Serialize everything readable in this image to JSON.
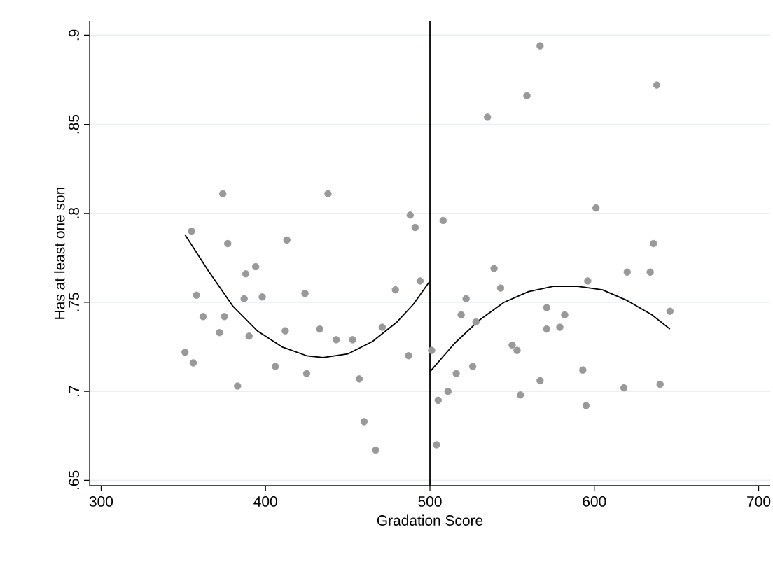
{
  "chart_data": {
    "type": "scatter",
    "xlabel": "Gradation Score",
    "ylabel": "Has at least one son",
    "xlim": [
      293,
      707
    ],
    "ylim": [
      0.647,
      0.908
    ],
    "xticks": [
      300,
      400,
      500,
      600,
      700
    ],
    "yticks": [
      {
        "value": 0.65,
        "label": ".65"
      },
      {
        "value": 0.7,
        "label": ".7"
      },
      {
        "value": 0.75,
        "label": ".75"
      },
      {
        "value": 0.8,
        "label": ".8"
      },
      {
        "value": 0.85,
        "label": ".85"
      },
      {
        "value": 0.9,
        "label": ".9"
      }
    ],
    "grid": "y",
    "marker": "circle",
    "ref_lines": [
      {
        "axis": "x",
        "value": 500,
        "color": "#000000"
      }
    ],
    "series": [
      {
        "color": "#999999",
        "x": [
          351,
          356,
          355,
          358,
          362,
          372,
          375,
          374,
          377,
          383,
          387,
          388,
          390,
          394,
          398,
          406,
          412,
          413,
          424,
          425,
          433,
          438,
          443,
          453,
          457,
          460,
          467,
          471,
          479,
          488,
          487,
          491,
          494,
          501,
          504,
          505,
          508,
          511,
          516,
          519,
          522,
          526,
          528,
          535,
          539,
          543,
          550,
          553,
          555,
          559,
          567,
          567,
          571,
          571,
          579,
          582,
          593,
          595,
          596,
          601,
          618,
          620,
          634,
          636,
          638,
          640,
          646
        ],
        "values": [
          0.722,
          0.716,
          0.79,
          0.754,
          0.742,
          0.733,
          0.742,
          0.811,
          0.783,
          0.703,
          0.752,
          0.766,
          0.731,
          0.77,
          0.753,
          0.714,
          0.734,
          0.785,
          0.755,
          0.71,
          0.735,
          0.811,
          0.729,
          0.729,
          0.707,
          0.683,
          0.667,
          0.736,
          0.757,
          0.799,
          0.72,
          0.792,
          0.762,
          0.723,
          0.67,
          0.695,
          0.796,
          0.7,
          0.71,
          0.743,
          0.752,
          0.714,
          0.739,
          0.854,
          0.769,
          0.758,
          0.726,
          0.723,
          0.698,
          0.866,
          0.706,
          0.894,
          0.735,
          0.747,
          0.736,
          0.743,
          0.712,
          0.692,
          0.762,
          0.803,
          0.702,
          0.767,
          0.767,
          0.783,
          0.872,
          0.704,
          0.745
        ]
      },
      {
        "type": "line",
        "color": "#000000",
        "marker": "none",
        "x": [
          351,
          365,
          380,
          395,
          410,
          425,
          435,
          450,
          465,
          480,
          490,
          500
        ],
        "values": [
          0.788,
          0.768,
          0.748,
          0.734,
          0.725,
          0.72,
          0.719,
          0.721,
          0.728,
          0.739,
          0.749,
          0.762
        ]
      },
      {
        "type": "line",
        "color": "#000000",
        "marker": "none",
        "x": [
          500,
          515,
          530,
          545,
          560,
          575,
          590,
          605,
          620,
          635,
          646
        ],
        "values": [
          0.711,
          0.727,
          0.74,
          0.75,
          0.756,
          0.759,
          0.759,
          0.757,
          0.751,
          0.743,
          0.735
        ]
      }
    ]
  }
}
